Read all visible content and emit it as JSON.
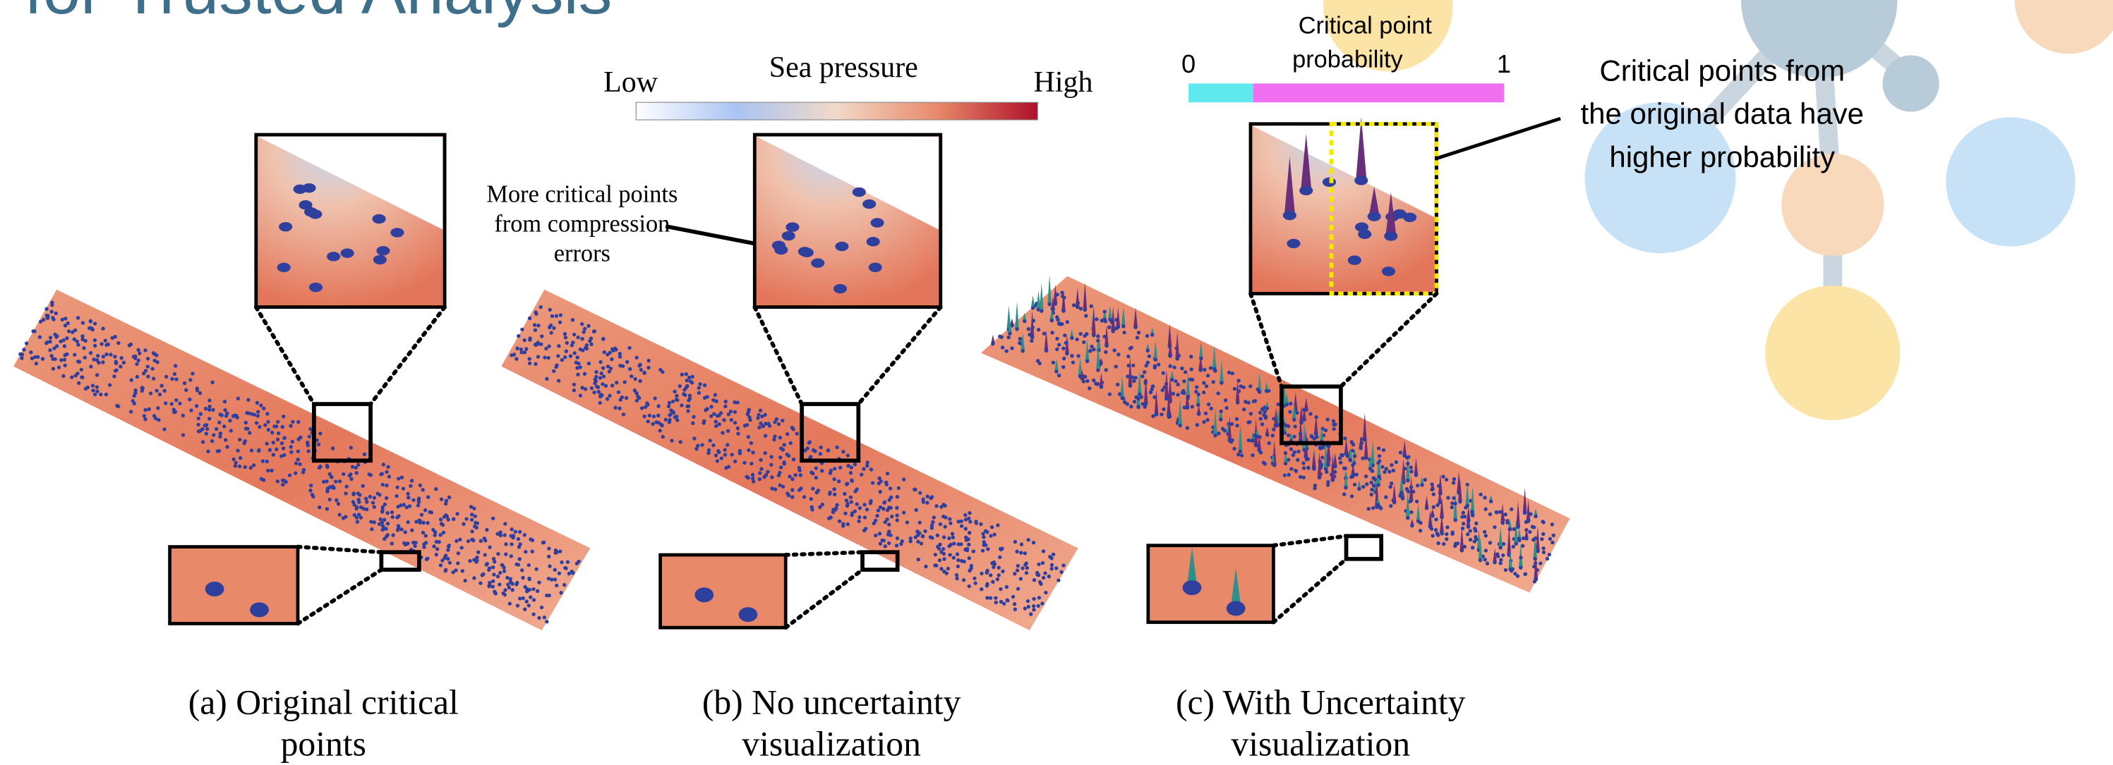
{
  "header": {
    "title": "for Trusted Analysis"
  },
  "sea_pressure_legend": {
    "title": "Sea pressure",
    "low": "Low",
    "high": "High"
  },
  "probability_legend": {
    "title_lines": [
      "Critical point",
      "probability"
    ],
    "min": "0",
    "max": "1"
  },
  "annotations": {
    "compression": {
      "lines": [
        "More critical points",
        "from compression",
        "errors"
      ]
    },
    "probability": {
      "lines": [
        "Critical points from",
        "the original data have",
        "higher probability"
      ]
    }
  },
  "panels": [
    {
      "caption_lines": [
        "(a) Original critical",
        "points"
      ]
    },
    {
      "caption_lines": [
        "(b) No uncertainty",
        "visualization"
      ]
    },
    {
      "caption_lines": [
        "(c) With Uncertainty",
        "visualization"
      ]
    }
  ]
}
